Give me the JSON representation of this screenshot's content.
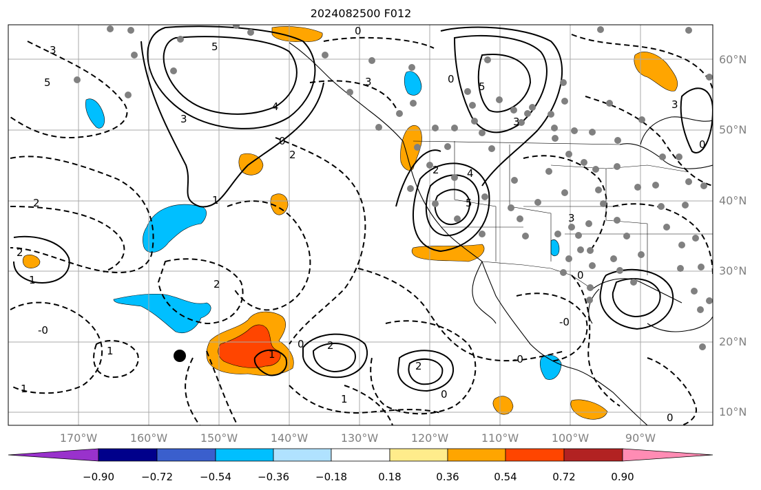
{
  "title": "2024082500 F012",
  "lat_labels": [
    "60°N",
    "50°N",
    "40°N",
    "30°N",
    "20°N",
    "10°N"
  ],
  "lon_labels": [
    "170°W",
    "160°W",
    "150°W",
    "140°W",
    "130°W",
    "120°W",
    "110°W",
    "100°W",
    "90°W"
  ],
  "colorbar": {
    "colors": [
      "#9932cc",
      "#00008b",
      "#3a5fcd",
      "#00bfff",
      "#b0e2ff",
      "#ffffff",
      "#ffec8b",
      "#ffa500",
      "#ff4500",
      "#b22222",
      "#ff8cb4"
    ],
    "tick_labels": [
      "−0.90",
      "−0.72",
      "−0.54",
      "−0.36",
      "−0.18",
      "0.18",
      "0.36",
      "0.54",
      "0.72",
      "0.90"
    ]
  },
  "contour_labels": [
    "5",
    "3",
    "0",
    "2",
    "4",
    "1",
    "-0"
  ],
  "marker_colors": {
    "station": "#808080",
    "storm": "#000000",
    "coast": "#000000",
    "grid": "#a9a9a9"
  }
}
